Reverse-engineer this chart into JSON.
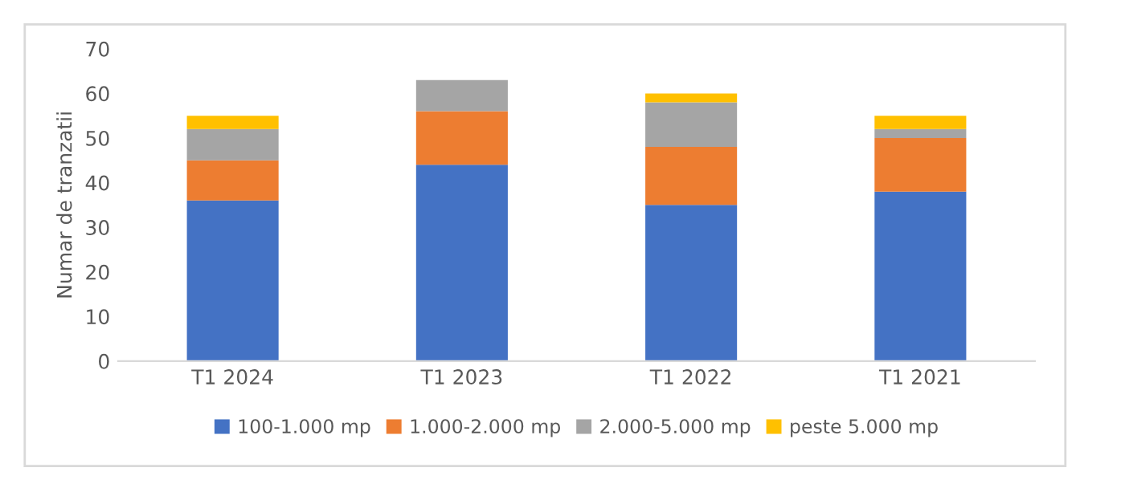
{
  "chart_data": {
    "type": "bar",
    "stacked": true,
    "ylabel": "Numar de tranzatii",
    "categories": [
      "T1 2024",
      "T1 2023",
      "T1 2022",
      "T1 2021"
    ],
    "series": [
      {
        "name": "100-1.000 mp",
        "color": "#4472c4",
        "values": [
          36,
          44,
          35,
          38
        ]
      },
      {
        "name": "1.000-2.000 mp",
        "color": "#ed7d31",
        "values": [
          9,
          12,
          13,
          12
        ]
      },
      {
        "name": "2.000-5.000 mp",
        "color": "#a5a5a5",
        "values": [
          7,
          7,
          10,
          2
        ]
      },
      {
        "name": "peste 5.000 mp",
        "color": "#ffc000",
        "values": [
          3,
          0,
          2,
          3
        ]
      }
    ],
    "ylim": [
      0,
      70
    ],
    "yticks": [
      0,
      10,
      20,
      30,
      40,
      50,
      60,
      70
    ],
    "grid": false,
    "legend": "bottom"
  }
}
